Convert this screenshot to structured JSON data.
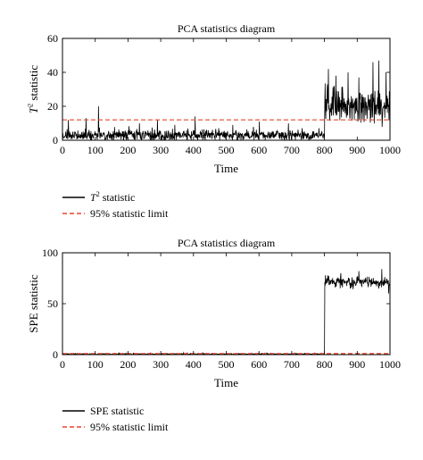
{
  "chart_data": [
    {
      "type": "line",
      "title": "PCA statistics diagram",
      "xlabel": "Time",
      "ylabel_parts": {
        "base": "T",
        "sup": "2",
        "rest": " statistic"
      },
      "xlim": [
        0,
        1000
      ],
      "ylim": [
        0,
        60
      ],
      "xticks": [
        0,
        100,
        200,
        300,
        400,
        500,
        600,
        700,
        800,
        900,
        1000
      ],
      "yticks": [
        0,
        20,
        40,
        60
      ],
      "legend_placement": "below",
      "series": [
        {
          "name_parts": {
            "base": "T",
            "sup": "2",
            "rest": " statistic"
          },
          "color": "#000000",
          "style": "solid",
          "segments": [
            {
              "x_range": [
                1,
                800
              ],
              "baseline": 3,
              "spread": 3,
              "spikes": [
                [
                  18,
                  12
                ],
                [
                  72,
                  13
                ],
                [
                  110,
                  20
                ],
                [
                  235,
                  10
                ],
                [
                  290,
                  12
                ],
                [
                  405,
                  14
                ],
                [
                  520,
                  9
                ],
                [
                  601,
                  11
                ],
                [
                  690,
                  10
                ]
              ]
            },
            {
              "x_range": [
                801,
                1000
              ],
              "baseline": 20,
              "spread": 9,
              "spikes": [
                [
                  812,
                  42
                ],
                [
                  835,
                  38
                ],
                [
                  872,
                  40
                ],
                [
                  905,
                  37
                ],
                [
                  948,
                  46
                ],
                [
                  966,
                  47
                ],
                [
                  988,
                  40
                ]
              ]
            }
          ]
        },
        {
          "name": "95% statistic limit",
          "color": "#e8452c",
          "style": "dashed",
          "x": [
            0,
            1000
          ],
          "y": [
            12,
            12
          ]
        }
      ]
    },
    {
      "type": "line",
      "title": "PCA statistics diagram",
      "xlabel": "Time",
      "ylabel": "SPE statistic",
      "xlim": [
        0,
        1000
      ],
      "ylim": [
        0,
        100
      ],
      "xticks": [
        0,
        100,
        200,
        300,
        400,
        500,
        600,
        700,
        800,
        900,
        1000
      ],
      "yticks": [
        0,
        50,
        100
      ],
      "legend_placement": "below",
      "series": [
        {
          "name": "SPE statistic",
          "color": "#000000",
          "style": "solid",
          "segments": [
            {
              "x_range": [
                1,
                800
              ],
              "baseline": 0.5,
              "spread": 0.6,
              "spikes": []
            },
            {
              "x_range": [
                801,
                1000
              ],
              "baseline": 71,
              "spread": 5,
              "spikes": [
                [
                  803,
                  78
                ],
                [
                  850,
                  80
                ],
                [
                  905,
                  82
                ],
                [
                  975,
                  84
                ],
                [
                  996,
                  60
                ]
              ]
            }
          ]
        },
        {
          "name": "95% statistic limit",
          "color": "#e8452c",
          "style": "dashed",
          "x": [
            0,
            1000
          ],
          "y": [
            1,
            1
          ]
        }
      ]
    }
  ]
}
